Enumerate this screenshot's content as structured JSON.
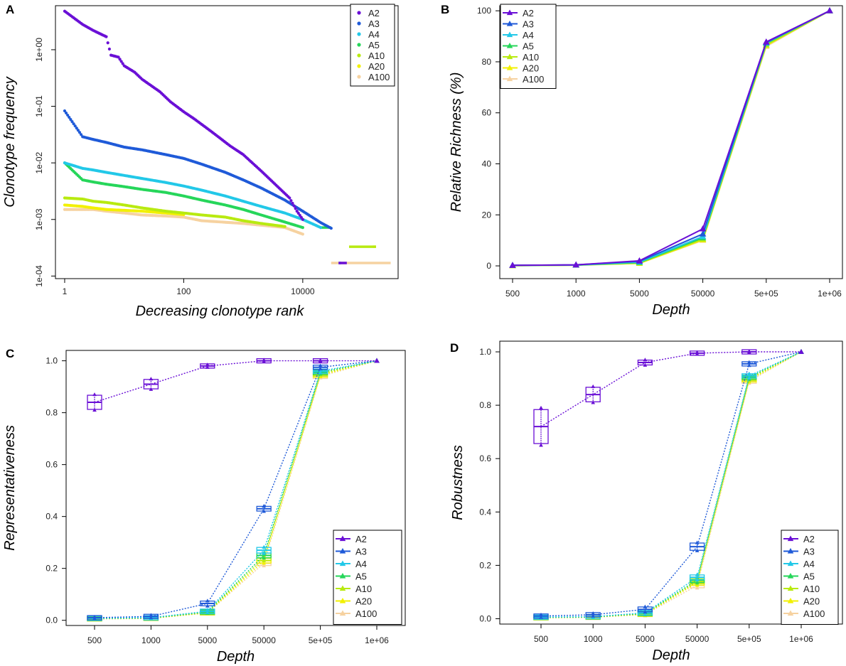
{
  "colors": {
    "A2": "#6a0fd6",
    "A3": "#1f5ad8",
    "A4": "#22c8e8",
    "A5": "#26d65a",
    "A10": "#b8ea10",
    "A20": "#f2f000",
    "A100": "#f6d2a0"
  },
  "chart_data": [
    {
      "panel": "A",
      "type": "scatter",
      "xscale": "log10",
      "yscale": "log10",
      "xlabel": "Decreasing clonotype rank",
      "ylabel": "Clonotype frequency",
      "xlim": [
        0.7,
        400000
      ],
      "ylim": [
        9e-05,
        6
      ],
      "xticks": [
        {
          "value": 1,
          "label": "1"
        },
        {
          "value": 100,
          "label": "100"
        },
        {
          "value": 10000,
          "label": "10000"
        }
      ],
      "yticks": [
        {
          "value": 1,
          "label": "1e+00"
        },
        {
          "value": 0.1,
          "label": "1e-01"
        },
        {
          "value": 0.01,
          "label": "1e-02"
        },
        {
          "value": 0.001,
          "label": "1e-03"
        },
        {
          "value": 0.0001,
          "label": "1e-04"
        }
      ],
      "legend_position": "top-right",
      "series": [
        {
          "name": "A2",
          "points": [
            [
              1,
              4.8
            ],
            [
              2,
              2.8
            ],
            [
              3,
              2.2
            ],
            [
              4,
              1.9
            ],
            [
              5,
              1.7
            ],
            [
              6,
              0.8
            ],
            [
              8,
              0.74
            ],
            [
              10,
              0.52
            ],
            [
              15,
              0.4
            ],
            [
              20,
              0.3
            ],
            [
              40,
              0.18
            ],
            [
              60,
              0.12
            ],
            [
              100,
              0.08
            ],
            [
              150,
              0.06
            ],
            [
              300,
              0.035
            ],
            [
              600,
              0.02
            ],
            [
              1000,
              0.014
            ],
            [
              2000,
              0.0072
            ],
            [
              4000,
              0.0036
            ],
            [
              6000,
              0.0024
            ],
            [
              8000,
              0.0014
            ],
            [
              10000,
              0.001
            ]
          ],
          "end_segment": {
            "x": [
              40000,
              55000
            ],
            "y": 0.00017
          }
        },
        {
          "name": "A3",
          "points": [
            [
              1,
              0.083
            ],
            [
              2,
              0.029
            ],
            [
              3,
              0.026
            ],
            [
              5,
              0.023
            ],
            [
              10,
              0.019
            ],
            [
              20,
              0.017
            ],
            [
              50,
              0.014
            ],
            [
              100,
              0.012
            ],
            [
              200,
              0.0095
            ],
            [
              500,
              0.0068
            ],
            [
              1000,
              0.005
            ],
            [
              2000,
              0.0036
            ],
            [
              5000,
              0.0022
            ],
            [
              10000,
              0.0014
            ],
            [
              20000,
              0.00088
            ],
            [
              30000,
              0.0007
            ]
          ],
          "end_segment": {
            "x": [
              40000,
              44000
            ],
            "y": 0.00017
          }
        },
        {
          "name": "A4",
          "points": [
            [
              1,
              0.01
            ],
            [
              2,
              0.008
            ],
            [
              3,
              0.0075
            ],
            [
              5,
              0.0068
            ],
            [
              10,
              0.006
            ],
            [
              20,
              0.0053
            ],
            [
              50,
              0.0045
            ],
            [
              100,
              0.0039
            ],
            [
              200,
              0.0033
            ],
            [
              500,
              0.0026
            ],
            [
              1000,
              0.0021
            ],
            [
              2000,
              0.0017
            ],
            [
              5000,
              0.0013
            ],
            [
              10000,
              0.001
            ],
            [
              20000,
              0.00072
            ]
          ],
          "end_segment": null
        },
        {
          "name": "A5",
          "points": [
            [
              1,
              0.01
            ],
            [
              2,
              0.005
            ],
            [
              3,
              0.0046
            ],
            [
              5,
              0.0042
            ],
            [
              10,
              0.0038
            ],
            [
              20,
              0.0034
            ],
            [
              50,
              0.003
            ],
            [
              100,
              0.0026
            ],
            [
              200,
              0.0022
            ],
            [
              500,
              0.0018
            ],
            [
              1000,
              0.0015
            ],
            [
              2000,
              0.0012
            ],
            [
              5000,
              0.0009
            ],
            [
              10000,
              0.00072
            ]
          ],
          "end_segment": {
            "x": [
              20000,
              30000
            ],
            "y": 0.00072
          }
        },
        {
          "name": "A10",
          "points": [
            [
              1,
              0.0024
            ],
            [
              2,
              0.0023
            ],
            [
              3,
              0.0021
            ],
            [
              5,
              0.002
            ],
            [
              10,
              0.0018
            ],
            [
              20,
              0.0016
            ],
            [
              50,
              0.0014
            ],
            [
              100,
              0.0013
            ],
            [
              200,
              0.0012
            ],
            [
              500,
              0.0011
            ],
            [
              1000,
              0.00095
            ],
            [
              2000,
              0.00085
            ],
            [
              5000,
              0.00075
            ]
          ],
          "end_segment": {
            "x": [
              60000,
              170000
            ],
            "y": 0.00033
          }
        },
        {
          "name": "A20",
          "points": [
            [
              1,
              0.0018
            ],
            [
              2,
              0.0017
            ],
            [
              3,
              0.0016
            ],
            [
              5,
              0.0015
            ],
            [
              10,
              0.00145
            ],
            [
              20,
              0.0014
            ],
            [
              50,
              0.0013
            ],
            [
              100,
              0.00122
            ]
          ],
          "end_segment": {
            "x": [
              150000,
              170000
            ],
            "y": 0.00033
          }
        },
        {
          "name": "A100",
          "points": [
            [
              1,
              0.0015
            ],
            [
              2,
              0.0015
            ],
            [
              3,
              0.0015
            ],
            [
              5,
              0.0014
            ],
            [
              10,
              0.0013
            ],
            [
              20,
              0.0012
            ],
            [
              50,
              0.00115
            ],
            [
              100,
              0.0011
            ],
            [
              200,
              0.00095
            ],
            [
              1000,
              0.00085
            ],
            [
              5000,
              0.00072
            ],
            [
              10000,
              0.00055
            ]
          ],
          "end_segment": {
            "x": [
              30000,
              300000
            ],
            "y": 0.00017
          }
        }
      ]
    },
    {
      "panel": "B",
      "type": "line",
      "xlabel": "Depth",
      "ylabel": "Relative Richness (%)",
      "categories": [
        "500",
        "1000",
        "5000",
        "50000",
        "5e+05",
        "1e+06"
      ],
      "ylim": [
        -5,
        102
      ],
      "yticks": [
        0,
        20,
        40,
        60,
        80,
        100
      ],
      "legend_position": "top-left",
      "series": [
        {
          "name": "A2",
          "values": [
            0.2,
            0.4,
            2.0,
            14.5,
            87.8,
            100
          ]
        },
        {
          "name": "A3",
          "values": [
            0.2,
            0.4,
            1.8,
            12.5,
            87.6,
            100
          ]
        },
        {
          "name": "A4",
          "values": [
            0.2,
            0.3,
            1.5,
            11.5,
            87.4,
            100
          ]
        },
        {
          "name": "A5",
          "values": [
            0.2,
            0.3,
            1.3,
            11.0,
            87.2,
            100
          ]
        },
        {
          "name": "A10",
          "values": [
            0.1,
            0.3,
            1.1,
            10.5,
            86.6,
            100
          ]
        },
        {
          "name": "A20",
          "values": [
            0.1,
            0.3,
            1.0,
            10.2,
            86.4,
            100
          ]
        },
        {
          "name": "A100",
          "values": [
            0.1,
            0.2,
            1.0,
            10.0,
            86.0,
            100
          ]
        }
      ]
    },
    {
      "panel": "C",
      "type": "line",
      "xlabel": "Depth",
      "ylabel": "Representativeness",
      "categories": [
        "500",
        "1000",
        "5000",
        "50000",
        "5e+05",
        "1e+06"
      ],
      "ylim": [
        -0.02,
        1.04
      ],
      "yticks": [
        0.0,
        0.2,
        0.4,
        0.6,
        0.8,
        1.0
      ],
      "legend_position": "bottom-right",
      "series": [
        {
          "name": "A2",
          "values": [
            0.84,
            0.91,
            0.98,
            1.0,
            1.0,
            1.0
          ],
          "spread": [
            0.03,
            0.02,
            0.005,
            0.003,
            0.002,
            0
          ]
        },
        {
          "name": "A3",
          "values": [
            0.01,
            0.015,
            0.065,
            0.43,
            0.975,
            1.0
          ],
          "spread": [
            0.003,
            0.005,
            0.01,
            0.01,
            0.006,
            0
          ]
        },
        {
          "name": "A4",
          "values": [
            0.008,
            0.01,
            0.035,
            0.27,
            0.96,
            1.0
          ],
          "spread": [
            0.002,
            0.003,
            0.005,
            0.012,
            0.006,
            0
          ]
        },
        {
          "name": "A5",
          "values": [
            0.007,
            0.009,
            0.032,
            0.25,
            0.955,
            1.0
          ],
          "spread": [
            0.002,
            0.003,
            0.005,
            0.01,
            0.006,
            0
          ]
        },
        {
          "name": "A10",
          "values": [
            0.006,
            0.008,
            0.03,
            0.24,
            0.95,
            1.0
          ],
          "spread": [
            0.002,
            0.003,
            0.004,
            0.01,
            0.006,
            0
          ]
        },
        {
          "name": "A20",
          "values": [
            0.006,
            0.008,
            0.029,
            0.23,
            0.945,
            1.0
          ],
          "spread": [
            0.002,
            0.003,
            0.004,
            0.01,
            0.006,
            0
          ]
        },
        {
          "name": "A100",
          "values": [
            0.005,
            0.007,
            0.028,
            0.22,
            0.94,
            1.0
          ],
          "spread": [
            0.002,
            0.003,
            0.004,
            0.01,
            0.006,
            0
          ]
        }
      ]
    },
    {
      "panel": "D",
      "type": "line",
      "xlabel": "Depth",
      "ylabel": "Robustness",
      "categories": [
        "500",
        "1000",
        "5000",
        "50000",
        "5e+05",
        "1e+06"
      ],
      "ylim": [
        -0.02,
        1.04
      ],
      "yticks": [
        0.0,
        0.2,
        0.4,
        0.6,
        0.8,
        1.0
      ],
      "legend_position": "bottom-right",
      "series": [
        {
          "name": "A2",
          "values": [
            0.72,
            0.84,
            0.96,
            0.995,
            1.0,
            1.0
          ],
          "spread": [
            0.07,
            0.03,
            0.01,
            0.003,
            0.002,
            0
          ]
        },
        {
          "name": "A3",
          "values": [
            0.01,
            0.015,
            0.035,
            0.27,
            0.955,
            1.0
          ],
          "spread": [
            0.005,
            0.005,
            0.01,
            0.015,
            0.006,
            0
          ]
        },
        {
          "name": "A4",
          "values": [
            0.006,
            0.008,
            0.022,
            0.155,
            0.91,
            1.0
          ],
          "spread": [
            0.002,
            0.003,
            0.005,
            0.01,
            0.008,
            0
          ]
        },
        {
          "name": "A5",
          "values": [
            0.005,
            0.007,
            0.02,
            0.145,
            0.905,
            1.0
          ],
          "spread": [
            0.002,
            0.003,
            0.005,
            0.01,
            0.008,
            0
          ]
        },
        {
          "name": "A10",
          "values": [
            0.004,
            0.006,
            0.018,
            0.14,
            0.9,
            1.0
          ],
          "spread": [
            0.002,
            0.003,
            0.005,
            0.01,
            0.008,
            0
          ]
        },
        {
          "name": "A20",
          "values": [
            0.004,
            0.006,
            0.017,
            0.135,
            0.895,
            1.0
          ],
          "spread": [
            0.002,
            0.003,
            0.005,
            0.01,
            0.008,
            0
          ]
        },
        {
          "name": "A100",
          "values": [
            0.003,
            0.005,
            0.016,
            0.125,
            0.89,
            1.0
          ],
          "spread": [
            0.002,
            0.003,
            0.005,
            0.01,
            0.008,
            0
          ]
        }
      ]
    }
  ]
}
